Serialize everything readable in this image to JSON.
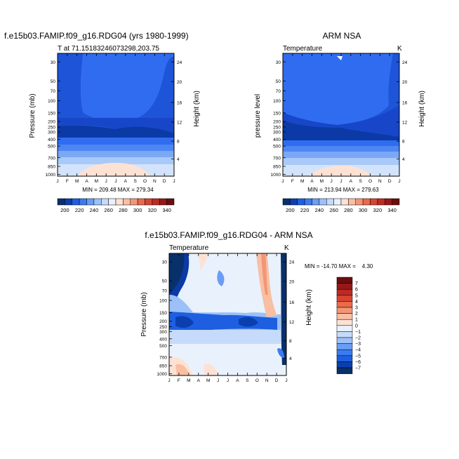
{
  "colors": {
    "diverging": [
      "#08306b",
      "#0b3fb0",
      "#1d5fe0",
      "#3a7bf0",
      "#6a9df5",
      "#9cc0f8",
      "#c6dbfb",
      "#e9f1fd",
      "#fde2d4",
      "#f8bfa3",
      "#f39676",
      "#ea6a4b",
      "#d94430",
      "#bd2a22",
      "#971818",
      "#6e0c0c"
    ],
    "shell_frame": "#000000"
  },
  "chart_data": [
    {
      "panel": "model",
      "type": "heatmap",
      "title": "f.e15b03.FAMIP.f09_g16.RDG04 (yrs 1980-1999)",
      "subtitle": "T at 71.15183246073298,203.75",
      "ylabel_left": "Pressure (mb)",
      "ylabel_right": "Height (km)",
      "months": [
        "J",
        "F",
        "M",
        "A",
        "M",
        "J",
        "J",
        "A",
        "S",
        "O",
        "N",
        "D",
        "J"
      ],
      "pressure_ticks": [
        30,
        50,
        70,
        100,
        150,
        200,
        250,
        300,
        400,
        500,
        700,
        850,
        1000
      ],
      "height_ticks": [
        4,
        8,
        12,
        16,
        20,
        24
      ],
      "levels": [
        200,
        210,
        220,
        230,
        240,
        250,
        260,
        270,
        280,
        290,
        300,
        310,
        320,
        330,
        340
      ],
      "min_max_text": "MIN = 209.48 MAX = 279.34",
      "colorbar_labels": [
        "200",
        "220",
        "240",
        "260",
        "280",
        "300",
        "320",
        "340"
      ]
    },
    {
      "panel": "obs",
      "type": "heatmap",
      "title": "ARM NSA",
      "subtitle_left": "Temperature",
      "subtitle_right": "K",
      "ylabel_left": "pressure level",
      "ylabel_right": "Height (km)",
      "months": [
        "J",
        "F",
        "M",
        "A",
        "M",
        "J",
        "J",
        "A",
        "S",
        "O",
        "N",
        "D",
        "J"
      ],
      "pressure_ticks": [
        30,
        50,
        70,
        100,
        150,
        200,
        250,
        300,
        400,
        500,
        700,
        850,
        1000
      ],
      "height_ticks": [
        4,
        8,
        12,
        16,
        20,
        24
      ],
      "levels": [
        200,
        210,
        220,
        230,
        240,
        250,
        260,
        270,
        280,
        290,
        300,
        310,
        320,
        330,
        340
      ],
      "min_max_text": "MIN = 213.94 MAX = 279.63",
      "colorbar_labels": [
        "200",
        "220",
        "240",
        "260",
        "280",
        "300",
        "320",
        "340"
      ]
    },
    {
      "panel": "diff",
      "type": "heatmap",
      "title": "f.e15b03.FAMIP.f09_g16.RDG04 - ARM NSA",
      "subtitle_left": "Temperature",
      "subtitle_right": "K",
      "ylabel_left": "Pressure (mb)",
      "ylabel_right": "Height (km)",
      "months": [
        "J",
        "F",
        "M",
        "A",
        "M",
        "J",
        "J",
        "A",
        "S",
        "O",
        "N",
        "D",
        "J"
      ],
      "pressure_ticks": [
        30,
        50,
        70,
        100,
        150,
        200,
        250,
        300,
        400,
        500,
        700,
        850,
        1000
      ],
      "height_ticks": [
        4,
        8,
        12,
        16,
        20,
        24
      ],
      "levels": [
        -7,
        -6,
        -5,
        -4,
        -3,
        -2,
        -1,
        0,
        1,
        2,
        3,
        4,
        5,
        6,
        7
      ],
      "min_max_text": "MIN = -14.70 MAX =    4.30",
      "colorbar_labels": [
        "7",
        "6",
        "5",
        "4",
        "3",
        "2",
        "1",
        "0",
        "−1",
        "−2",
        "−3",
        "−4",
        "−5",
        "−6",
        "−7"
      ]
    }
  ]
}
